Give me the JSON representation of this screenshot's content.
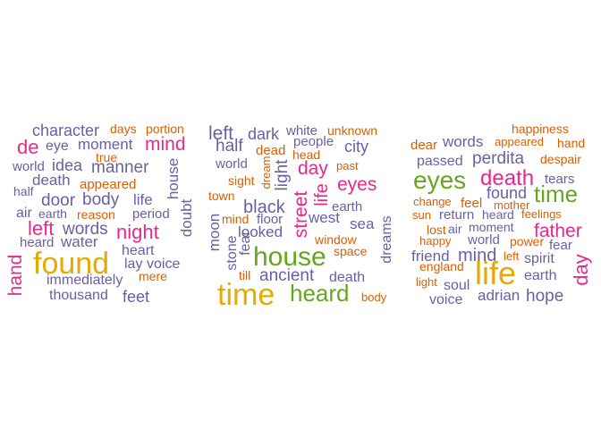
{
  "colors": {
    "slate_purple": "#6a5fa3",
    "orange": "#d95f02",
    "magenta": "#e7298a",
    "gold": "#e6ab02",
    "green": "#66a61e",
    "background": "#ffffff"
  },
  "chart_data": [
    {
      "type": "wordcloud",
      "words": [
        {
          "text": "character",
          "color": "#6a5fa3",
          "size": 18
        },
        {
          "text": "days",
          "color": "#d95f02",
          "size": 14
        },
        {
          "text": "portion",
          "color": "#d95f02",
          "size": 14
        },
        {
          "text": "de",
          "color": "#e7298a",
          "size": 22
        },
        {
          "text": "eye",
          "color": "#6a5fa3",
          "size": 16
        },
        {
          "text": "moment",
          "color": "#6a5fa3",
          "size": 17
        },
        {
          "text": "mind",
          "color": "#e7298a",
          "size": 21
        },
        {
          "text": "true",
          "color": "#d95f02",
          "size": 14
        },
        {
          "text": "world",
          "color": "#6a5fa3",
          "size": 15
        },
        {
          "text": "idea",
          "color": "#6a5fa3",
          "size": 18
        },
        {
          "text": "manner",
          "color": "#6a5fa3",
          "size": 19
        },
        {
          "text": "death",
          "color": "#6a5fa3",
          "size": 17
        },
        {
          "text": "appeared",
          "color": "#d95f02",
          "size": 15
        },
        {
          "text": "half",
          "color": "#6a5fa3",
          "size": 14
        },
        {
          "text": "door",
          "color": "#6a5fa3",
          "size": 19
        },
        {
          "text": "body",
          "color": "#6a5fa3",
          "size": 19
        },
        {
          "text": "life",
          "color": "#6a5fa3",
          "size": 17
        },
        {
          "text": "house",
          "color": "#6a5fa3",
          "size": 17
        },
        {
          "text": "air",
          "color": "#6a5fa3",
          "size": 16
        },
        {
          "text": "earth",
          "color": "#6a5fa3",
          "size": 14
        },
        {
          "text": "reason",
          "color": "#d95f02",
          "size": 14
        },
        {
          "text": "period",
          "color": "#6a5fa3",
          "size": 15
        },
        {
          "text": "left",
          "color": "#e7298a",
          "size": 22
        },
        {
          "text": "words",
          "color": "#6a5fa3",
          "size": 19
        },
        {
          "text": "night",
          "color": "#e7298a",
          "size": 22
        },
        {
          "text": "doubt",
          "color": "#6a5fa3",
          "size": 17
        },
        {
          "text": "heard",
          "color": "#6a5fa3",
          "size": 15
        },
        {
          "text": "water",
          "color": "#6a5fa3",
          "size": 17
        },
        {
          "text": "heart",
          "color": "#6a5fa3",
          "size": 16
        },
        {
          "text": "found",
          "color": "#e6ab02",
          "size": 34
        },
        {
          "text": "lay",
          "color": "#6a5fa3",
          "size": 16
        },
        {
          "text": "voice",
          "color": "#6a5fa3",
          "size": 16
        },
        {
          "text": "hand",
          "color": "#e7298a",
          "size": 21
        },
        {
          "text": "immediately",
          "color": "#6a5fa3",
          "size": 16
        },
        {
          "text": "mere",
          "color": "#d95f02",
          "size": 14
        },
        {
          "text": "thousand",
          "color": "#6a5fa3",
          "size": 16
        },
        {
          "text": "feet",
          "color": "#6a5fa3",
          "size": 18
        }
      ]
    },
    {
      "type": "wordcloud",
      "words": [
        {
          "text": "left",
          "color": "#6a5fa3",
          "size": 21
        },
        {
          "text": "dark",
          "color": "#6a5fa3",
          "size": 18
        },
        {
          "text": "white",
          "color": "#6a5fa3",
          "size": 15
        },
        {
          "text": "unknown",
          "color": "#d95f02",
          "size": 14
        },
        {
          "text": "half",
          "color": "#6a5fa3",
          "size": 19
        },
        {
          "text": "dead",
          "color": "#d95f02",
          "size": 15
        },
        {
          "text": "people",
          "color": "#6a5fa3",
          "size": 15
        },
        {
          "text": "city",
          "color": "#6a5fa3",
          "size": 18
        },
        {
          "text": "world",
          "color": "#6a5fa3",
          "size": 15
        },
        {
          "text": "head",
          "color": "#d95f02",
          "size": 14
        },
        {
          "text": "day",
          "color": "#e7298a",
          "size": 21
        },
        {
          "text": "past",
          "color": "#d95f02",
          "size": 13
        },
        {
          "text": "sight",
          "color": "#d95f02",
          "size": 14
        },
        {
          "text": "dream",
          "color": "#d95f02",
          "size": 13
        },
        {
          "text": "light",
          "color": "#6a5fa3",
          "size": 19
        },
        {
          "text": "eyes",
          "color": "#e7298a",
          "size": 21
        },
        {
          "text": "town",
          "color": "#d95f02",
          "size": 14
        },
        {
          "text": "black",
          "color": "#6a5fa3",
          "size": 20
        },
        {
          "text": "street",
          "color": "#e7298a",
          "size": 21
        },
        {
          "text": "life",
          "color": "#e7298a",
          "size": 20
        },
        {
          "text": "earth",
          "color": "#6a5fa3",
          "size": 15
        },
        {
          "text": "moon",
          "color": "#6a5fa3",
          "size": 17
        },
        {
          "text": "mind",
          "color": "#d95f02",
          "size": 14
        },
        {
          "text": "floor",
          "color": "#6a5fa3",
          "size": 15
        },
        {
          "text": "west",
          "color": "#6a5fa3",
          "size": 17
        },
        {
          "text": "sea",
          "color": "#6a5fa3",
          "size": 17
        },
        {
          "text": "dreams",
          "color": "#6a5fa3",
          "size": 16
        },
        {
          "text": "stone",
          "color": "#6a5fa3",
          "size": 16
        },
        {
          "text": "fear",
          "color": "#6a5fa3",
          "size": 16
        },
        {
          "text": "looked",
          "color": "#6a5fa3",
          "size": 17
        },
        {
          "text": "window",
          "color": "#d95f02",
          "size": 14
        },
        {
          "text": "house",
          "color": "#66a61e",
          "size": 30
        },
        {
          "text": "space",
          "color": "#d95f02",
          "size": 14
        },
        {
          "text": "till",
          "color": "#d95f02",
          "size": 14
        },
        {
          "text": "ancient",
          "color": "#6a5fa3",
          "size": 19
        },
        {
          "text": "death",
          "color": "#6a5fa3",
          "size": 16
        },
        {
          "text": "time",
          "color": "#e6ab02",
          "size": 34
        },
        {
          "text": "heard",
          "color": "#66a61e",
          "size": 26
        },
        {
          "text": "body",
          "color": "#d95f02",
          "size": 13
        }
      ]
    },
    {
      "type": "wordcloud",
      "words": [
        {
          "text": "happiness",
          "color": "#d95f02",
          "size": 14
        },
        {
          "text": "dear",
          "color": "#d95f02",
          "size": 15
        },
        {
          "text": "words",
          "color": "#6a5fa3",
          "size": 17
        },
        {
          "text": "appeared",
          "color": "#d95f02",
          "size": 13
        },
        {
          "text": "hand",
          "color": "#d95f02",
          "size": 14
        },
        {
          "text": "passed",
          "color": "#6a5fa3",
          "size": 16
        },
        {
          "text": "perdita",
          "color": "#6a5fa3",
          "size": 19
        },
        {
          "text": "despair",
          "color": "#d95f02",
          "size": 14
        },
        {
          "text": "eyes",
          "color": "#66a61e",
          "size": 28
        },
        {
          "text": "death",
          "color": "#e7298a",
          "size": 24
        },
        {
          "text": "tears",
          "color": "#6a5fa3",
          "size": 15
        },
        {
          "text": "found",
          "color": "#6a5fa3",
          "size": 18
        },
        {
          "text": "time",
          "color": "#66a61e",
          "size": 26
        },
        {
          "text": "change",
          "color": "#d95f02",
          "size": 13
        },
        {
          "text": "feel",
          "color": "#d95f02",
          "size": 15
        },
        {
          "text": "mother",
          "color": "#d95f02",
          "size": 13
        },
        {
          "text": "sun",
          "color": "#d95f02",
          "size": 13
        },
        {
          "text": "return",
          "color": "#6a5fa3",
          "size": 15
        },
        {
          "text": "heard",
          "color": "#6a5fa3",
          "size": 14
        },
        {
          "text": "feelings",
          "color": "#d95f02",
          "size": 13
        },
        {
          "text": "lost",
          "color": "#d95f02",
          "size": 14
        },
        {
          "text": "air",
          "color": "#6a5fa3",
          "size": 14
        },
        {
          "text": "moment",
          "color": "#6a5fa3",
          "size": 14
        },
        {
          "text": "father",
          "color": "#e7298a",
          "size": 21
        },
        {
          "text": "happy",
          "color": "#d95f02",
          "size": 13
        },
        {
          "text": "world",
          "color": "#6a5fa3",
          "size": 15
        },
        {
          "text": "power",
          "color": "#d95f02",
          "size": 14
        },
        {
          "text": "fear",
          "color": "#6a5fa3",
          "size": 15
        },
        {
          "text": "friend",
          "color": "#6a5fa3",
          "size": 17
        },
        {
          "text": "mind",
          "color": "#6a5fa3",
          "size": 20
        },
        {
          "text": "left",
          "color": "#d95f02",
          "size": 13
        },
        {
          "text": "spirit",
          "color": "#6a5fa3",
          "size": 16
        },
        {
          "text": "england",
          "color": "#d95f02",
          "size": 14
        },
        {
          "text": "life",
          "color": "#e6ab02",
          "size": 36
        },
        {
          "text": "earth",
          "color": "#6a5fa3",
          "size": 16
        },
        {
          "text": "day",
          "color": "#e7298a",
          "size": 22
        },
        {
          "text": "light",
          "color": "#d95f02",
          "size": 13
        },
        {
          "text": "soul",
          "color": "#6a5fa3",
          "size": 16
        },
        {
          "text": "voice",
          "color": "#6a5fa3",
          "size": 16
        },
        {
          "text": "adrian",
          "color": "#6a5fa3",
          "size": 17
        },
        {
          "text": "hope",
          "color": "#6a5fa3",
          "size": 19
        }
      ]
    }
  ]
}
